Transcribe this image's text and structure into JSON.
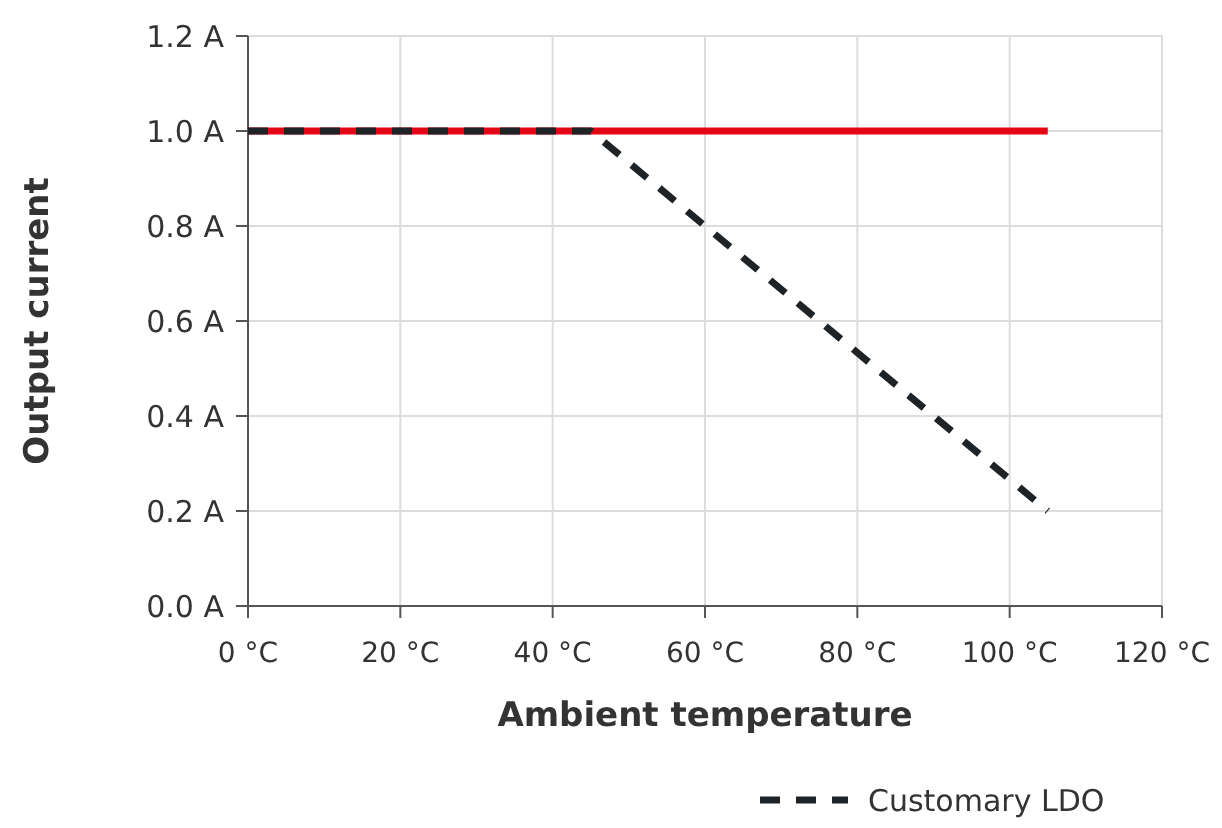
{
  "chart_data": {
    "type": "line",
    "xlabel": "Ambient temperature",
    "ylabel": "Output current",
    "xlim": [
      0,
      120
    ],
    "ylim": [
      0,
      1.2
    ],
    "xticks": [
      {
        "value": 0,
        "label": "0 °C"
      },
      {
        "value": 20,
        "label": "20 °C"
      },
      {
        "value": 40,
        "label": "40 °C"
      },
      {
        "value": 60,
        "label": "60 °C"
      },
      {
        "value": 80,
        "label": "80 °C"
      },
      {
        "value": 100,
        "label": "100 °C"
      },
      {
        "value": 120,
        "label": "120 °C"
      }
    ],
    "yticks": [
      {
        "value": 0,
        "label": "0.0 A"
      },
      {
        "value": 0.2,
        "label": "0.2 A"
      },
      {
        "value": 0.4,
        "label": "0.4 A"
      },
      {
        "value": 0.6,
        "label": "0.6 A"
      },
      {
        "value": 0.8,
        "label": "0.8 A"
      },
      {
        "value": 1,
        "label": "1.0 A"
      },
      {
        "value": 1.2,
        "label": "1.2 A"
      }
    ],
    "grid": true,
    "legend": "bottom",
    "series": [
      {
        "color": "#e30613",
        "line_style": "solid",
        "x": [
          0,
          105
        ],
        "values": [
          1,
          1
        ]
      },
      {
        "name": "Customary LDO",
        "color": "#1d2327",
        "line_style": "dashed",
        "x": [
          0,
          45,
          105
        ],
        "values": [
          1,
          1,
          0.2
        ]
      }
    ]
  }
}
